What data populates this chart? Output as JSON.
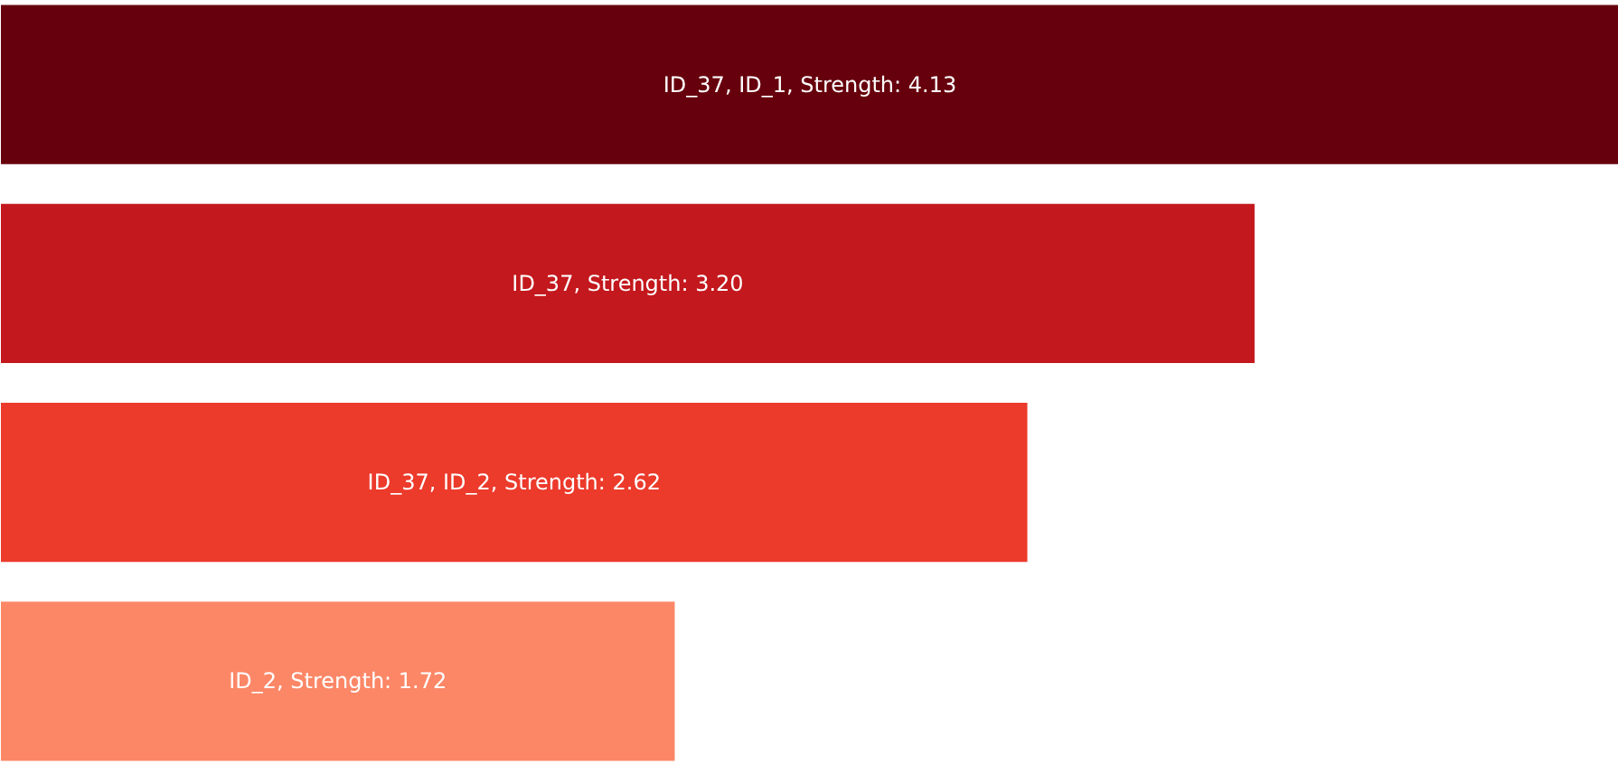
{
  "chart_data": {
    "type": "bar",
    "orientation": "horizontal",
    "categories": [
      null,
      null,
      null,
      null
    ],
    "values": [
      4.13,
      3.2,
      2.62,
      1.72
    ],
    "colors": [
      "#67000d",
      "#c3181d",
      "#ec3a2b",
      "#fc8767"
    ],
    "value_labels": [
      "ID_37, ID_1, Strength: 4.13",
      "ID_37, Strength: 3.20",
      "ID_37, ID_2, Strength: 2.62",
      "ID_2, Strength: 1.72"
    ],
    "xlim": [
      0,
      4.13
    ],
    "tick_labels": false
  }
}
